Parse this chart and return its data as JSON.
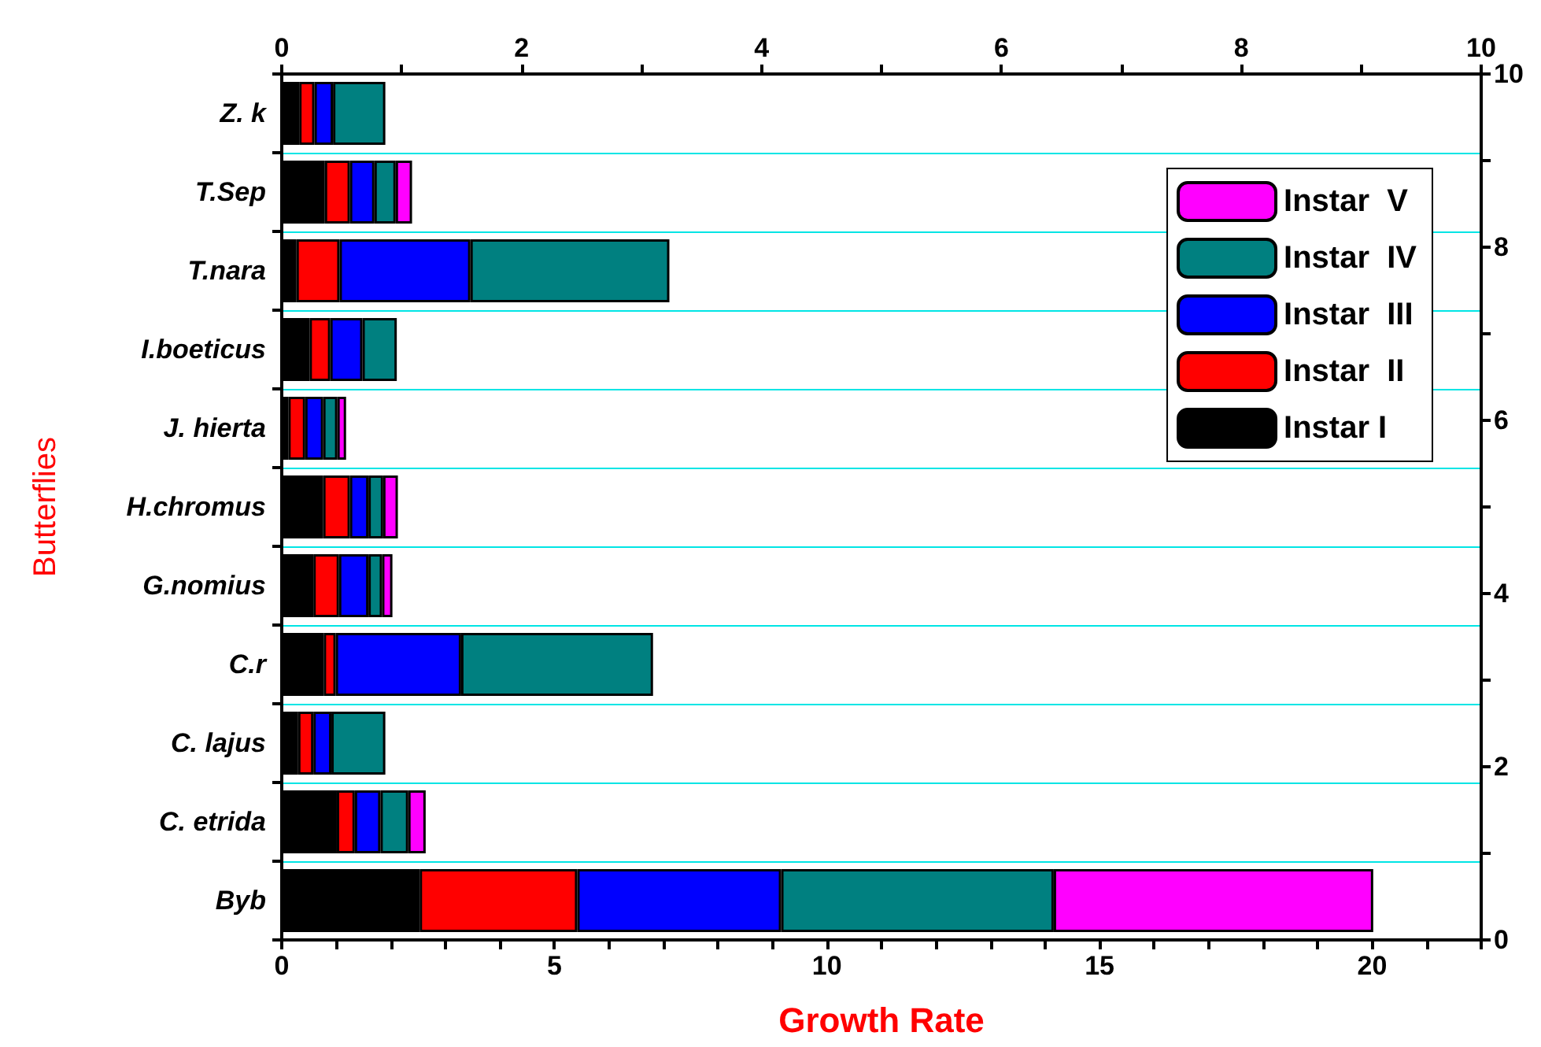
{
  "chart_data": {
    "type": "bar",
    "orientation": "horizontal",
    "stacked": true,
    "xlabel": "Growth Rate",
    "ylabel": "Butterflies",
    "categories": [
      "Z. k",
      "T.Sep",
      "T.nara",
      "I.boeticus",
      "J. hierta",
      "H.chromus",
      "G.nomius",
      "C.r",
      "C. lajus",
      "C. etrida",
      "Byb"
    ],
    "series": [
      {
        "name": "Instar I",
        "color": "#000000",
        "values": [
          0.32,
          0.79,
          0.27,
          0.51,
          0.12,
          0.76,
          0.58,
          0.77,
          0.3,
          1.01,
          2.53
        ]
      },
      {
        "name": "Instar  II",
        "color": "#ff0000",
        "values": [
          0.28,
          0.46,
          0.79,
          0.38,
          0.31,
          0.49,
          0.47,
          0.22,
          0.28,
          0.33,
          2.89
        ]
      },
      {
        "name": "Instar  III",
        "color": "#0000ff",
        "values": [
          0.34,
          0.45,
          2.4,
          0.59,
          0.33,
          0.34,
          0.54,
          2.3,
          0.33,
          0.47,
          3.74
        ]
      },
      {
        "name": "Instar  IV",
        "color": "#008080",
        "values": [
          0.96,
          0.39,
          3.65,
          0.63,
          0.26,
          0.27,
          0.25,
          3.52,
          0.99,
          0.51,
          5.0
        ]
      },
      {
        "name": "Instar  V",
        "color": "#ff00ff",
        "values": [
          null,
          0.3,
          null,
          null,
          0.16,
          0.27,
          0.19,
          null,
          null,
          0.32,
          5.86
        ]
      }
    ],
    "xlim": [
      0,
      22
    ],
    "xticks": [
      0,
      {
        "value": 1,
        "label": null
      },
      {
        "value": 2,
        "label": null
      },
      {
        "value": 3,
        "label": null
      },
      {
        "value": 4,
        "label": null
      },
      5,
      {
        "value": 6,
        "label": null
      },
      {
        "value": 7,
        "label": null
      },
      {
        "value": 8,
        "label": null
      },
      {
        "value": 9,
        "label": null
      },
      10,
      {
        "value": 11,
        "label": null
      },
      {
        "value": 12,
        "label": null
      },
      {
        "value": 13,
        "label": null
      },
      {
        "value": 14,
        "label": null
      },
      15,
      {
        "value": 16,
        "label": null
      },
      {
        "value": 17,
        "label": null
      },
      {
        "value": 18,
        "label": null
      },
      {
        "value": 19,
        "label": null
      },
      20,
      {
        "value": 21,
        "label": null
      },
      {
        "value": 22,
        "label": null
      }
    ],
    "x2lim": [
      0,
      10
    ],
    "x2ticks": [
      0,
      {
        "value": 1,
        "label": null
      },
      2,
      {
        "value": 3,
        "label": null
      },
      4,
      {
        "value": 5,
        "label": null
      },
      6,
      {
        "value": 7,
        "label": null
      },
      8,
      {
        "value": 9,
        "label": null
      },
      10
    ],
    "y2lim": [
      0,
      10
    ],
    "y2ticks": [
      0,
      {
        "value": 1,
        "label": null
      },
      2,
      {
        "value": 3,
        "label": null
      },
      4,
      {
        "value": 5,
        "label": null
      },
      6,
      {
        "value": 7,
        "label": null
      },
      8,
      {
        "value": 9,
        "label": null
      },
      10
    ],
    "grid": "y",
    "legend": "top right"
  }
}
